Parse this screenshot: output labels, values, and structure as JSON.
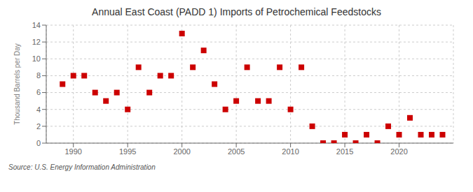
{
  "chart_data": {
    "type": "scatter",
    "title": "Annual East Coast (PADD 1) Imports of Petrochemical Feedstocks",
    "ylabel": "Thousand Barrels per Day",
    "annotations": [
      "Source: U.S. Energy Information Administration"
    ],
    "x": [
      1989,
      1990,
      1991,
      1992,
      1993,
      1994,
      1995,
      1996,
      1997,
      1998,
      1999,
      2000,
      2001,
      2002,
      2003,
      2004,
      2005,
      2006,
      2007,
      2008,
      2009,
      2010,
      2011,
      2012,
      2013,
      2014,
      2015,
      2016,
      2017,
      2018,
      2019,
      2020,
      2021,
      2022,
      2023,
      2024
    ],
    "values": [
      7,
      8,
      8,
      6,
      5,
      6,
      4,
      9,
      6,
      8,
      8,
      13,
      9,
      11,
      7,
      4,
      5,
      9,
      5,
      5,
      9,
      4,
      9,
      2,
      0,
      0,
      1,
      0,
      1,
      0,
      2,
      1,
      3,
      1,
      1,
      1
    ],
    "color": "#cc0000",
    "marker": "square",
    "xlim": [
      1987.5,
      2025
    ],
    "xticks": [
      1990,
      1995,
      2000,
      2005,
      2010,
      2015,
      2020
    ],
    "ylim": [
      0,
      14
    ],
    "yticks": [
      0,
      2,
      4,
      6,
      8,
      10,
      12,
      14
    ],
    "grid": true
  }
}
